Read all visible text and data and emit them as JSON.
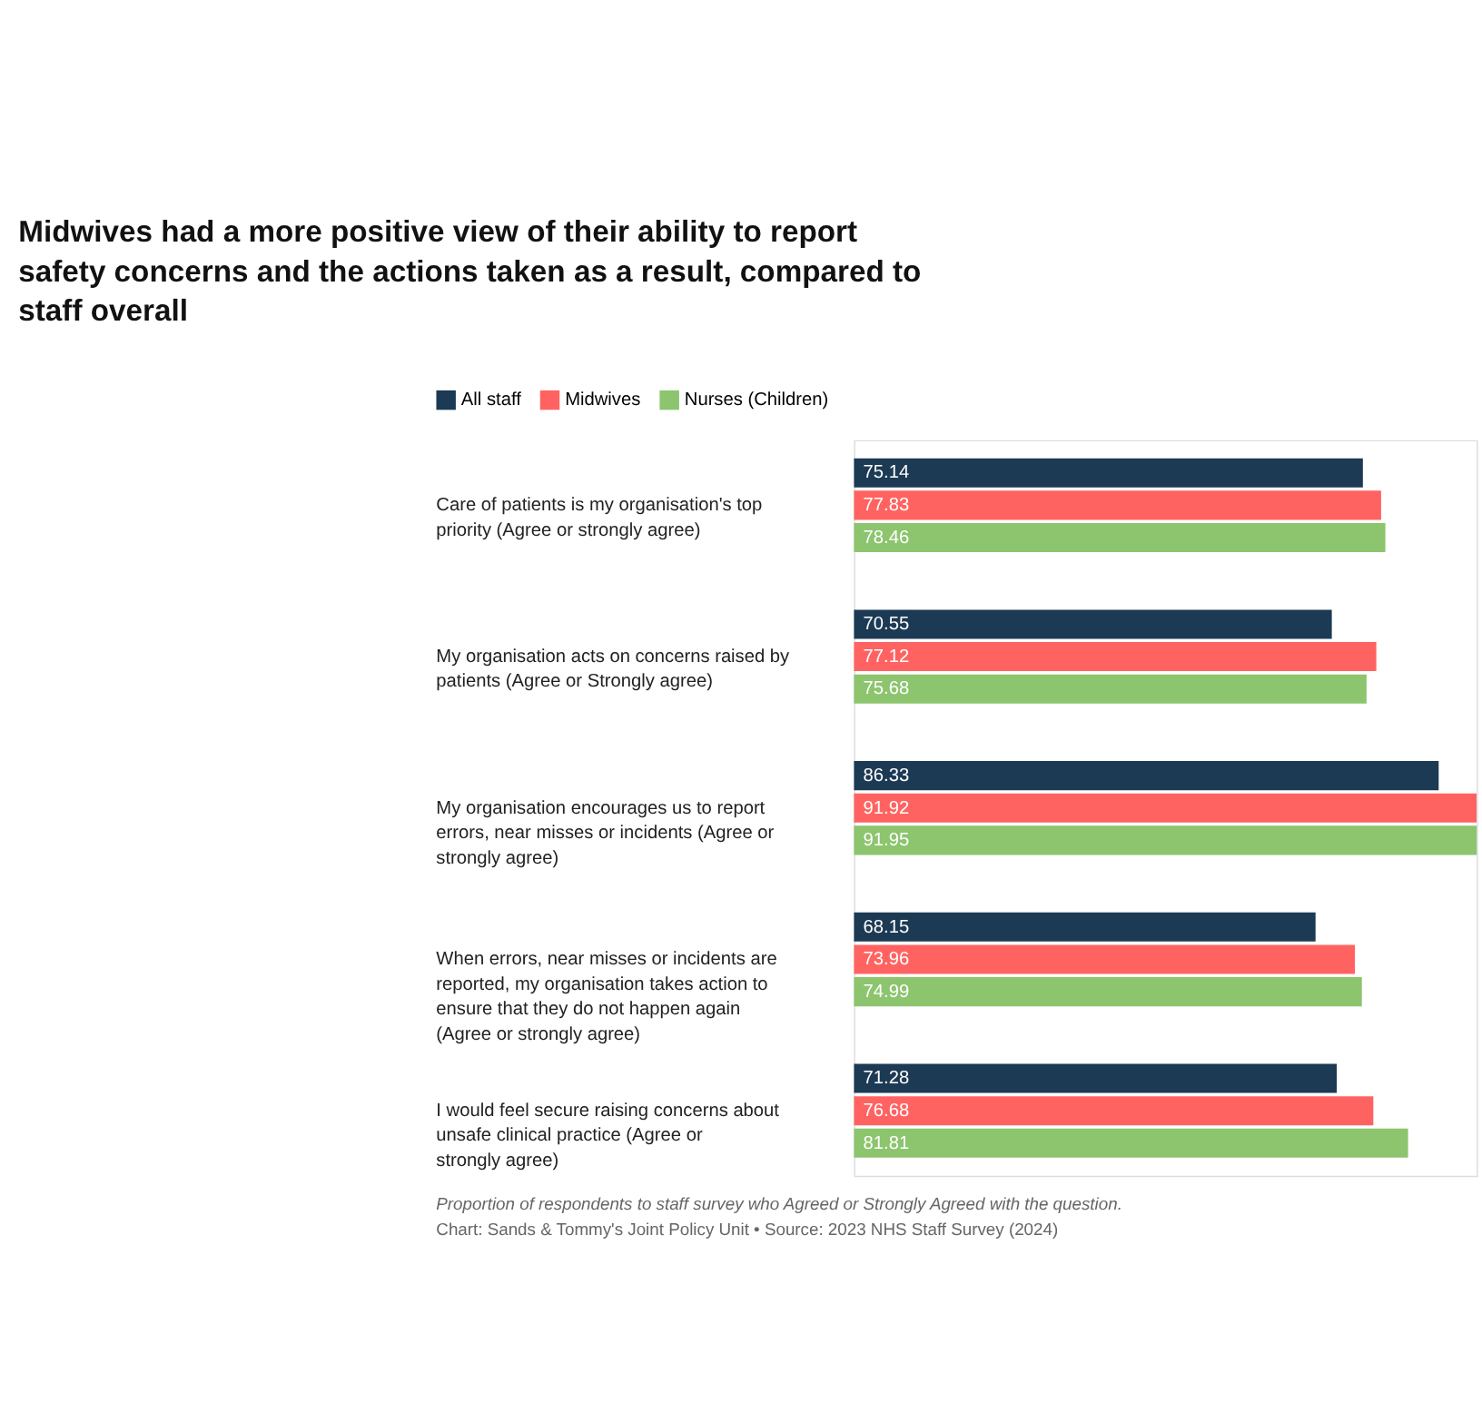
{
  "chart_data": {
    "type": "bar",
    "orientation": "horizontal",
    "title": "Midwives had a more positive view of their ability to report safety concerns and the actions taken as a result, compared to staff overall",
    "categories": [
      "Care of patients is my organisation's top priority (Agree or strongly agree)",
      "My organisation acts on concerns raised by patients (Agree or Strongly agree)",
      "My organisation encourages us to report errors, near misses or incidents (Agree or strongly agree)",
      "When errors, near misses or incidents are reported, my organisation takes action to ensure that they do not happen again (Agree or strongly agree)",
      "I would feel secure raising concerns about unsafe clinical practice (Agree or strongly agree)"
    ],
    "series": [
      {
        "name": "All staff",
        "color": "#1c3a54",
        "values": [
          75.14,
          70.55,
          86.33,
          68.15,
          71.28
        ]
      },
      {
        "name": "Midwives",
        "color": "#ff6361",
        "values": [
          77.83,
          77.12,
          91.92,
          73.96,
          76.68
        ]
      },
      {
        "name": "Nurses (Children)",
        "color": "#8dc46e",
        "values": [
          78.46,
          75.68,
          91.95,
          74.99,
          81.81
        ]
      }
    ],
    "data_labels": true,
    "legend": "top left",
    "grid": false,
    "annotations": [
      "Proportion of respondents to staff survey who Agreed or Strongly Agreed with the question.",
      "Chart: Sands & Tommy's Joint Policy Unit • Source: 2023 NHS Staff Survey (2024)"
    ]
  }
}
